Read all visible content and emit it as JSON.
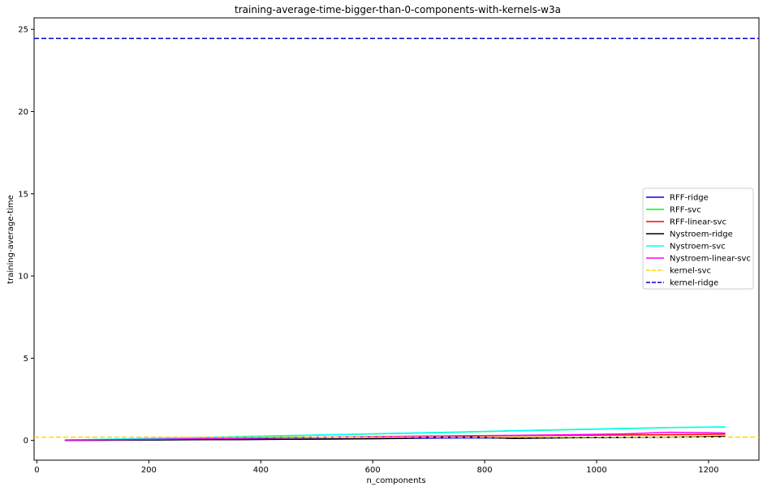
{
  "chart_data": {
    "type": "line",
    "title": "training-average-time-bigger-than-0-components-with-kernels-w3a",
    "xlabel": "n_components",
    "ylabel": "training-average-time",
    "xlim": [
      -5,
      1290
    ],
    "ylim": [
      -1.2,
      25.7
    ],
    "xticks": [
      0,
      200,
      400,
      600,
      800,
      1000,
      1200
    ],
    "yticks": [
      0,
      5,
      10,
      15,
      20,
      25
    ],
    "grid": false,
    "legend_position": "center-right",
    "x": [
      50,
      150,
      250,
      350,
      450,
      550,
      650,
      750,
      850,
      950,
      1050,
      1130,
      1230
    ],
    "series": [
      {
        "name": "RFF-ridge",
        "color": "#0000ff",
        "dash": "solid",
        "values": [
          0.01,
          0.02,
          0.04,
          0.06,
          0.08,
          0.1,
          0.13,
          0.15,
          0.15,
          0.17,
          0.19,
          0.2,
          0.22
        ]
      },
      {
        "name": "RFF-svc",
        "color": "#00ff00",
        "dash": "solid",
        "values": [
          0.03,
          0.08,
          0.14,
          0.21,
          0.28,
          0.36,
          0.43,
          0.5,
          0.58,
          0.65,
          0.72,
          0.78,
          0.82
        ]
      },
      {
        "name": "RFF-linear-svc",
        "color": "#ff0000",
        "dash": "solid",
        "values": [
          0.02,
          0.05,
          0.09,
          0.13,
          0.17,
          0.2,
          0.24,
          0.27,
          0.29,
          0.31,
          0.33,
          0.35,
          0.38
        ]
      },
      {
        "name": "Nystroem-ridge",
        "color": "#000000",
        "dash": "solid",
        "values": [
          0.01,
          0.02,
          0.04,
          0.05,
          0.07,
          0.09,
          0.12,
          0.25,
          0.12,
          0.16,
          0.18,
          0.19,
          0.25
        ]
      },
      {
        "name": "Nystroem-svc",
        "color": "#00ffff",
        "dash": "solid",
        "values": [
          0.03,
          0.09,
          0.15,
          0.23,
          0.3,
          0.37,
          0.44,
          0.51,
          0.59,
          0.66,
          0.73,
          0.79,
          0.83
        ]
      },
      {
        "name": "Nystroem-linear-svc",
        "color": "#ff00ff",
        "dash": "solid",
        "values": [
          0.02,
          0.05,
          0.09,
          0.13,
          0.17,
          0.21,
          0.25,
          0.28,
          0.31,
          0.35,
          0.4,
          0.5,
          0.45
        ]
      },
      {
        "name": "kernel-svc",
        "color": "#ffd700",
        "dash": "dashed",
        "constant": 0.2
      },
      {
        "name": "kernel-ridge",
        "color": "#0000cd",
        "dash": "dashed",
        "constant": 24.45
      }
    ]
  }
}
